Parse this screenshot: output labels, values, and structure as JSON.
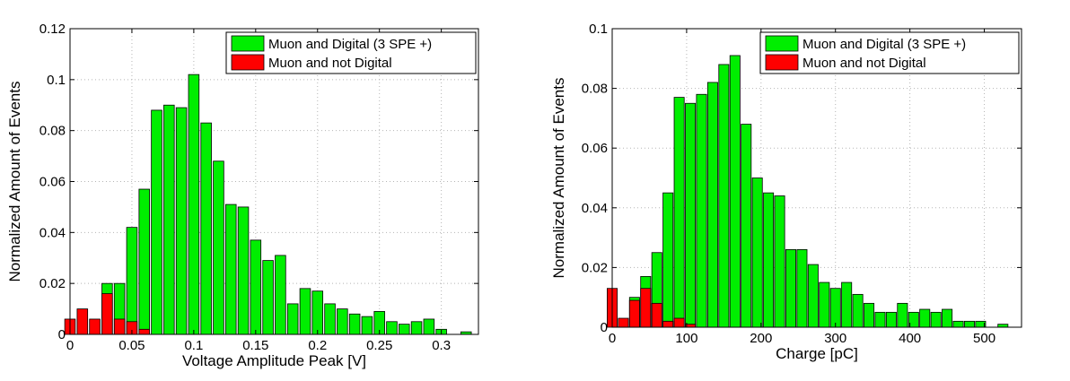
{
  "chart_data": [
    {
      "type": "bar",
      "title": "",
      "xlabel": "Voltage Amplitude Peak [V]",
      "ylabel": "Normalized Amount of Events",
      "xlim": [
        0,
        0.33
      ],
      "ylim": [
        0,
        0.12
      ],
      "grid": true,
      "legend_position": "top-right",
      "xticks": [
        0,
        0.05,
        0.1,
        0.15,
        0.2,
        0.25,
        0.3
      ],
      "xtick_labels": [
        "0",
        "0.05",
        "0.1",
        "0.15",
        "0.2",
        "0.25",
        "0.3"
      ],
      "yticks": [
        0,
        0.02,
        0.04,
        0.06,
        0.08,
        0.1,
        0.12
      ],
      "ytick_labels": [
        "0",
        "0.02",
        "0.04",
        "0.06",
        "0.08",
        "0.1",
        "0.12"
      ],
      "bar_width": 0.0085,
      "series": [
        {
          "name": "Muon and Digital (3 SPE +)",
          "color": "#00ee00",
          "x": [
            0.03,
            0.04,
            0.05,
            0.06,
            0.07,
            0.08,
            0.09,
            0.1,
            0.11,
            0.12,
            0.13,
            0.14,
            0.15,
            0.16,
            0.17,
            0.18,
            0.19,
            0.2,
            0.21,
            0.22,
            0.23,
            0.24,
            0.25,
            0.26,
            0.27,
            0.28,
            0.29,
            0.3,
            0.32
          ],
          "values": [
            0.02,
            0.02,
            0.042,
            0.057,
            0.088,
            0.09,
            0.089,
            0.102,
            0.083,
            0.068,
            0.051,
            0.05,
            0.037,
            0.029,
            0.031,
            0.012,
            0.018,
            0.017,
            0.012,
            0.01,
            0.008,
            0.007,
            0.009,
            0.005,
            0.004,
            0.005,
            0.006,
            0.002,
            0.001
          ]
        },
        {
          "name": "Muon and not Digital",
          "color": "#ff0000",
          "x": [
            0.0,
            0.01,
            0.02,
            0.03,
            0.04,
            0.05,
            0.06
          ],
          "values": [
            0.006,
            0.01,
            0.006,
            0.016,
            0.006,
            0.005,
            0.002
          ]
        }
      ]
    },
    {
      "type": "bar",
      "title": "",
      "xlabel": "Charge [pC]",
      "ylabel": "Normalized Amount of Events",
      "xlim": [
        0,
        550
      ],
      "ylim": [
        0,
        0.1
      ],
      "grid": true,
      "legend_position": "top-right",
      "xticks": [
        0,
        100,
        200,
        300,
        400,
        500
      ],
      "xtick_labels": [
        "0",
        "100",
        "200",
        "300",
        "400",
        "500"
      ],
      "yticks": [
        0,
        0.02,
        0.04,
        0.06,
        0.08,
        0.1
      ],
      "ytick_labels": [
        "0",
        "0.02",
        "0.04",
        "0.06",
        "0.08",
        "0.1"
      ],
      "bar_width": 13.5,
      "series": [
        {
          "name": "Muon and Digital (3 SPE +)",
          "color": "#00ee00",
          "x": [
            30,
            45,
            60,
            75,
            90,
            105,
            120,
            135,
            150,
            165,
            180,
            195,
            210,
            225,
            240,
            255,
            270,
            285,
            300,
            315,
            330,
            345,
            360,
            375,
            390,
            405,
            420,
            435,
            450,
            465,
            480,
            495,
            525
          ],
          "values": [
            0.01,
            0.017,
            0.025,
            0.045,
            0.077,
            0.075,
            0.078,
            0.082,
            0.088,
            0.091,
            0.068,
            0.05,
            0.045,
            0.044,
            0.026,
            0.026,
            0.021,
            0.015,
            0.013,
            0.015,
            0.011,
            0.008,
            0.005,
            0.005,
            0.008,
            0.005,
            0.006,
            0.005,
            0.006,
            0.002,
            0.002,
            0.002,
            0.001
          ]
        },
        {
          "name": "Muon and not Digital",
          "color": "#ff0000",
          "x": [
            0,
            15,
            30,
            45,
            60,
            75,
            90,
            105
          ],
          "values": [
            0.013,
            0.003,
            0.009,
            0.013,
            0.008,
            0.002,
            0.003,
            0.001
          ]
        }
      ]
    }
  ]
}
